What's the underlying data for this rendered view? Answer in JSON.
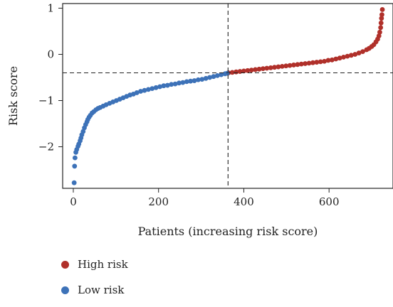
{
  "chart_data": {
    "type": "scatter",
    "xlabel": "Patients (increasing risk score)",
    "ylabel": "Risk score",
    "xlim": [
      -25,
      750
    ],
    "ylim": [
      -2.9,
      1.1
    ],
    "xticks": [
      "0",
      "200",
      "400",
      "600"
    ],
    "xtick_values": [
      0,
      200,
      400,
      600
    ],
    "yticks": [
      "1",
      "0",
      "−1",
      "−2"
    ],
    "ytick_values": [
      1,
      0,
      -1,
      -2
    ],
    "cutoff": {
      "x": 363,
      "y": -0.4
    },
    "series": [
      {
        "name": "High risk",
        "color": "#b0302a",
        "points": [
          [
            364,
            -0.4
          ],
          [
            373,
            -0.39
          ],
          [
            382,
            -0.38
          ],
          [
            391,
            -0.37
          ],
          [
            400,
            -0.36
          ],
          [
            409,
            -0.35
          ],
          [
            418,
            -0.34
          ],
          [
            427,
            -0.33
          ],
          [
            436,
            -0.32
          ],
          [
            445,
            -0.31
          ],
          [
            454,
            -0.3
          ],
          [
            463,
            -0.29
          ],
          [
            472,
            -0.28
          ],
          [
            481,
            -0.27
          ],
          [
            490,
            -0.26
          ],
          [
            499,
            -0.25
          ],
          [
            508,
            -0.24
          ],
          [
            517,
            -0.23
          ],
          [
            526,
            -0.22
          ],
          [
            535,
            -0.21
          ],
          [
            544,
            -0.2
          ],
          [
            553,
            -0.19
          ],
          [
            562,
            -0.18
          ],
          [
            571,
            -0.17
          ],
          [
            580,
            -0.16
          ],
          [
            589,
            -0.15
          ],
          [
            598,
            -0.13
          ],
          [
            607,
            -0.12
          ],
          [
            616,
            -0.1
          ],
          [
            625,
            -0.08
          ],
          [
            634,
            -0.06
          ],
          [
            643,
            -0.04
          ],
          [
            652,
            -0.02
          ],
          [
            661,
            0.0
          ],
          [
            670,
            0.03
          ],
          [
            679,
            0.06
          ],
          [
            688,
            0.1
          ],
          [
            694,
            0.13
          ],
          [
            700,
            0.17
          ],
          [
            705,
            0.21
          ],
          [
            710,
            0.27
          ],
          [
            714,
            0.33
          ],
          [
            717,
            0.4
          ],
          [
            719,
            0.48
          ],
          [
            721,
            0.58
          ],
          [
            722,
            0.68
          ],
          [
            723,
            0.78
          ],
          [
            724,
            0.86
          ],
          [
            725,
            0.97
          ]
        ]
      },
      {
        "name": "Low risk",
        "color": "#3d72b8",
        "points": [
          [
            2,
            -2.78
          ],
          [
            3,
            -2.42
          ],
          [
            4,
            -2.24
          ],
          [
            6,
            -2.12
          ],
          [
            8,
            -2.06
          ],
          [
            11,
            -1.99
          ],
          [
            13,
            -1.94
          ],
          [
            16,
            -1.87
          ],
          [
            18,
            -1.81
          ],
          [
            20,
            -1.74
          ],
          [
            23,
            -1.67
          ],
          [
            26,
            -1.59
          ],
          [
            29,
            -1.52
          ],
          [
            32,
            -1.46
          ],
          [
            34,
            -1.41
          ],
          [
            37,
            -1.36
          ],
          [
            40,
            -1.32
          ],
          [
            44,
            -1.27
          ],
          [
            48,
            -1.24
          ],
          [
            53,
            -1.2
          ],
          [
            58,
            -1.17
          ],
          [
            63,
            -1.15
          ],
          [
            70,
            -1.12
          ],
          [
            77,
            -1.09
          ],
          [
            85,
            -1.06
          ],
          [
            93,
            -1.03
          ],
          [
            101,
            -1.0
          ],
          [
            109,
            -0.97
          ],
          [
            117,
            -0.94
          ],
          [
            125,
            -0.91
          ],
          [
            133,
            -0.88
          ],
          [
            141,
            -0.86
          ],
          [
            149,
            -0.83
          ],
          [
            158,
            -0.8
          ],
          [
            167,
            -0.78
          ],
          [
            176,
            -0.76
          ],
          [
            185,
            -0.74
          ],
          [
            194,
            -0.72
          ],
          [
            203,
            -0.7
          ],
          [
            212,
            -0.68
          ],
          [
            221,
            -0.67
          ],
          [
            230,
            -0.65
          ],
          [
            239,
            -0.64
          ],
          [
            248,
            -0.62
          ],
          [
            257,
            -0.61
          ],
          [
            266,
            -0.59
          ],
          [
            275,
            -0.58
          ],
          [
            284,
            -0.57
          ],
          [
            293,
            -0.55
          ],
          [
            302,
            -0.54
          ],
          [
            311,
            -0.52
          ],
          [
            320,
            -0.5
          ],
          [
            329,
            -0.48
          ],
          [
            338,
            -0.46
          ],
          [
            347,
            -0.44
          ],
          [
            356,
            -0.42
          ],
          [
            361,
            -0.41
          ]
        ]
      }
    ],
    "legend": {
      "position": "bottom-left"
    }
  }
}
